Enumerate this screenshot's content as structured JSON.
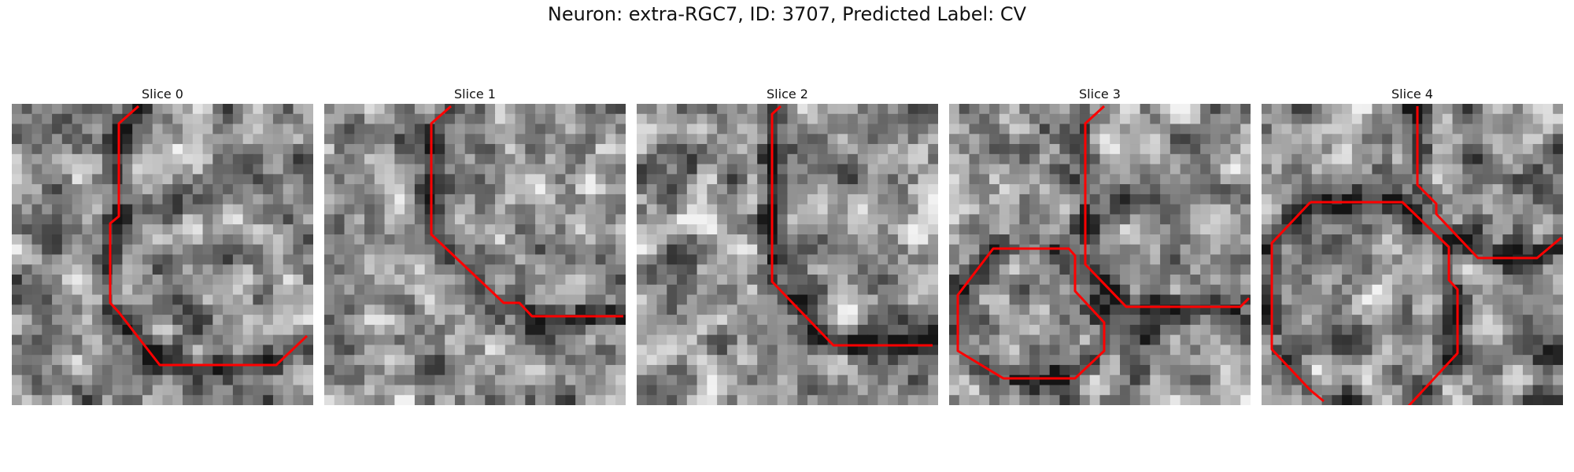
{
  "figure": {
    "title": "Neuron: extra-RGC7, ID: 3707, Predicted Label: CV"
  },
  "colors": {
    "contour": "#ff0000",
    "background": "#ffffff"
  },
  "panels": [
    {
      "title": "Slice 0"
    },
    {
      "title": "Slice 1"
    },
    {
      "title": "Slice 2"
    },
    {
      "title": "Slice 3"
    },
    {
      "title": "Slice 4"
    }
  ]
}
